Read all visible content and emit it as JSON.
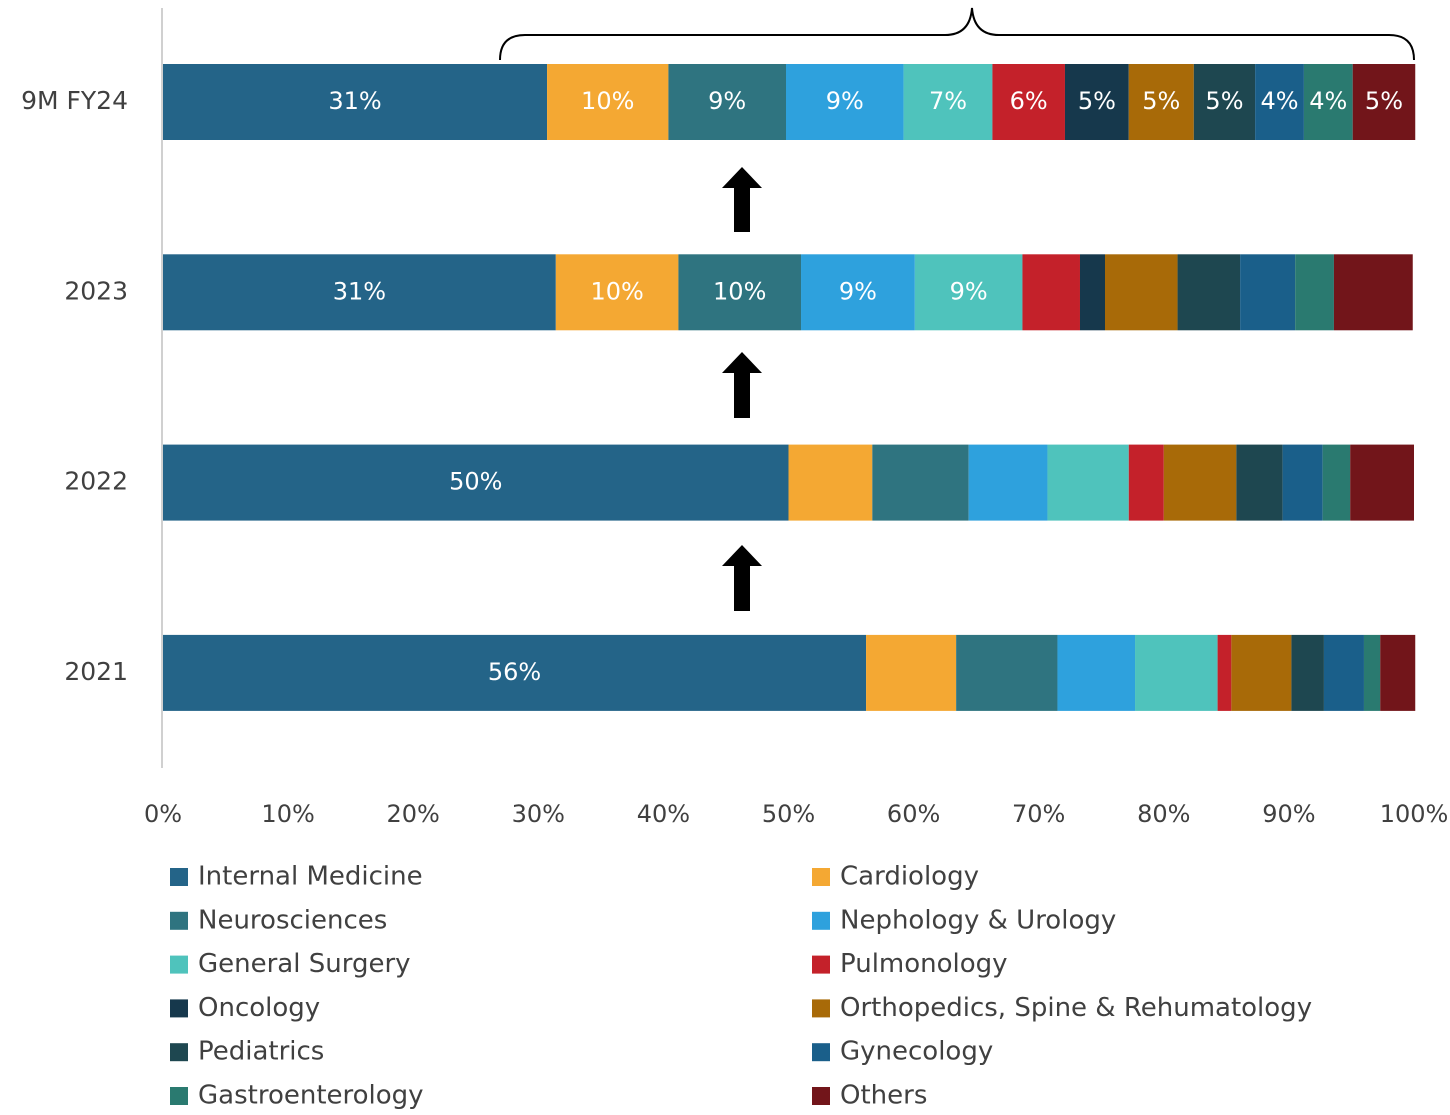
{
  "chart_data": {
    "type": "stacked_bar_horizontal",
    "categories": [
      "9M FY24",
      "2023",
      "2022",
      "2021"
    ],
    "series": [
      {
        "name": "Internal Medicine",
        "color": "#246488",
        "values": [
          30.7,
          31.4,
          50.0,
          56.2
        ],
        "value_labels": [
          "31%",
          "31%",
          "50%",
          "56%"
        ]
      },
      {
        "name": "Cardiology",
        "color": "#f4a833",
        "values": [
          9.7,
          9.8,
          6.7,
          7.2
        ],
        "value_labels": [
          "10%",
          "10%",
          null,
          null
        ]
      },
      {
        "name": "Neurosciences",
        "color": "#2f7480",
        "values": [
          9.4,
          9.8,
          7.7,
          8.1
        ],
        "value_labels": [
          "9%",
          "10%",
          null,
          null
        ]
      },
      {
        "name": "Nephology & Urology",
        "color": "#2ea1dd",
        "values": [
          9.4,
          9.1,
          6.3,
          6.2
        ],
        "value_labels": [
          "9%",
          "9%",
          null,
          null
        ]
      },
      {
        "name": "General Surgery",
        "color": "#4fc3bc",
        "values": [
          7.1,
          8.6,
          6.5,
          6.6
        ],
        "value_labels": [
          "7%",
          "9%",
          null,
          null
        ]
      },
      {
        "name": "Pulmonology",
        "color": "#c4212a",
        "values": [
          5.8,
          4.6,
          2.8,
          1.1
        ],
        "value_labels": [
          "6%",
          null,
          null,
          null
        ]
      },
      {
        "name": "Oncology",
        "color": "#16384c",
        "values": [
          5.1,
          2.0,
          0,
          0
        ],
        "value_labels": [
          "5%",
          null,
          null,
          null
        ]
      },
      {
        "name": "Orthopedics, Spine & Rehumatology",
        "color": "#a86a08",
        "values": [
          5.2,
          5.8,
          5.8,
          4.8
        ],
        "value_labels": [
          "5%",
          null,
          null,
          null
        ]
      },
      {
        "name": "Pediatrics",
        "color": "#1e4750",
        "values": [
          4.9,
          5.0,
          3.7,
          2.6
        ],
        "value_labels": [
          "5%",
          null,
          null,
          null
        ]
      },
      {
        "name": "Gynecology",
        "color": "#1a5f8a",
        "values": [
          3.9,
          4.4,
          3.2,
          3.2
        ],
        "value_labels": [
          "4%",
          null,
          null,
          null
        ]
      },
      {
        "name": "Gastroenterology",
        "color": "#2a7a70",
        "values": [
          3.9,
          3.1,
          2.2,
          1.3
        ],
        "value_labels": [
          "4%",
          null,
          null,
          null
        ]
      },
      {
        "name": "Others",
        "color": "#72151a",
        "values": [
          5.0,
          6.3,
          5.1,
          2.8
        ],
        "value_labels": [
          "5%",
          null,
          null,
          null
        ]
      }
    ],
    "xlim": [
      0,
      100
    ],
    "xticks": [
      {
        "value": 0,
        "label": "0%"
      },
      {
        "value": 10,
        "label": "10%"
      },
      {
        "value": 20,
        "label": "20%"
      },
      {
        "value": 30,
        "label": "30%"
      },
      {
        "value": 40,
        "label": "40%"
      },
      {
        "value": 50,
        "label": "50%"
      },
      {
        "value": 60,
        "label": "60%"
      },
      {
        "value": 70,
        "label": "70%"
      },
      {
        "value": 80,
        "label": "80%"
      },
      {
        "value": 90,
        "label": "90%"
      },
      {
        "value": 100,
        "label": "100%"
      }
    ]
  }
}
